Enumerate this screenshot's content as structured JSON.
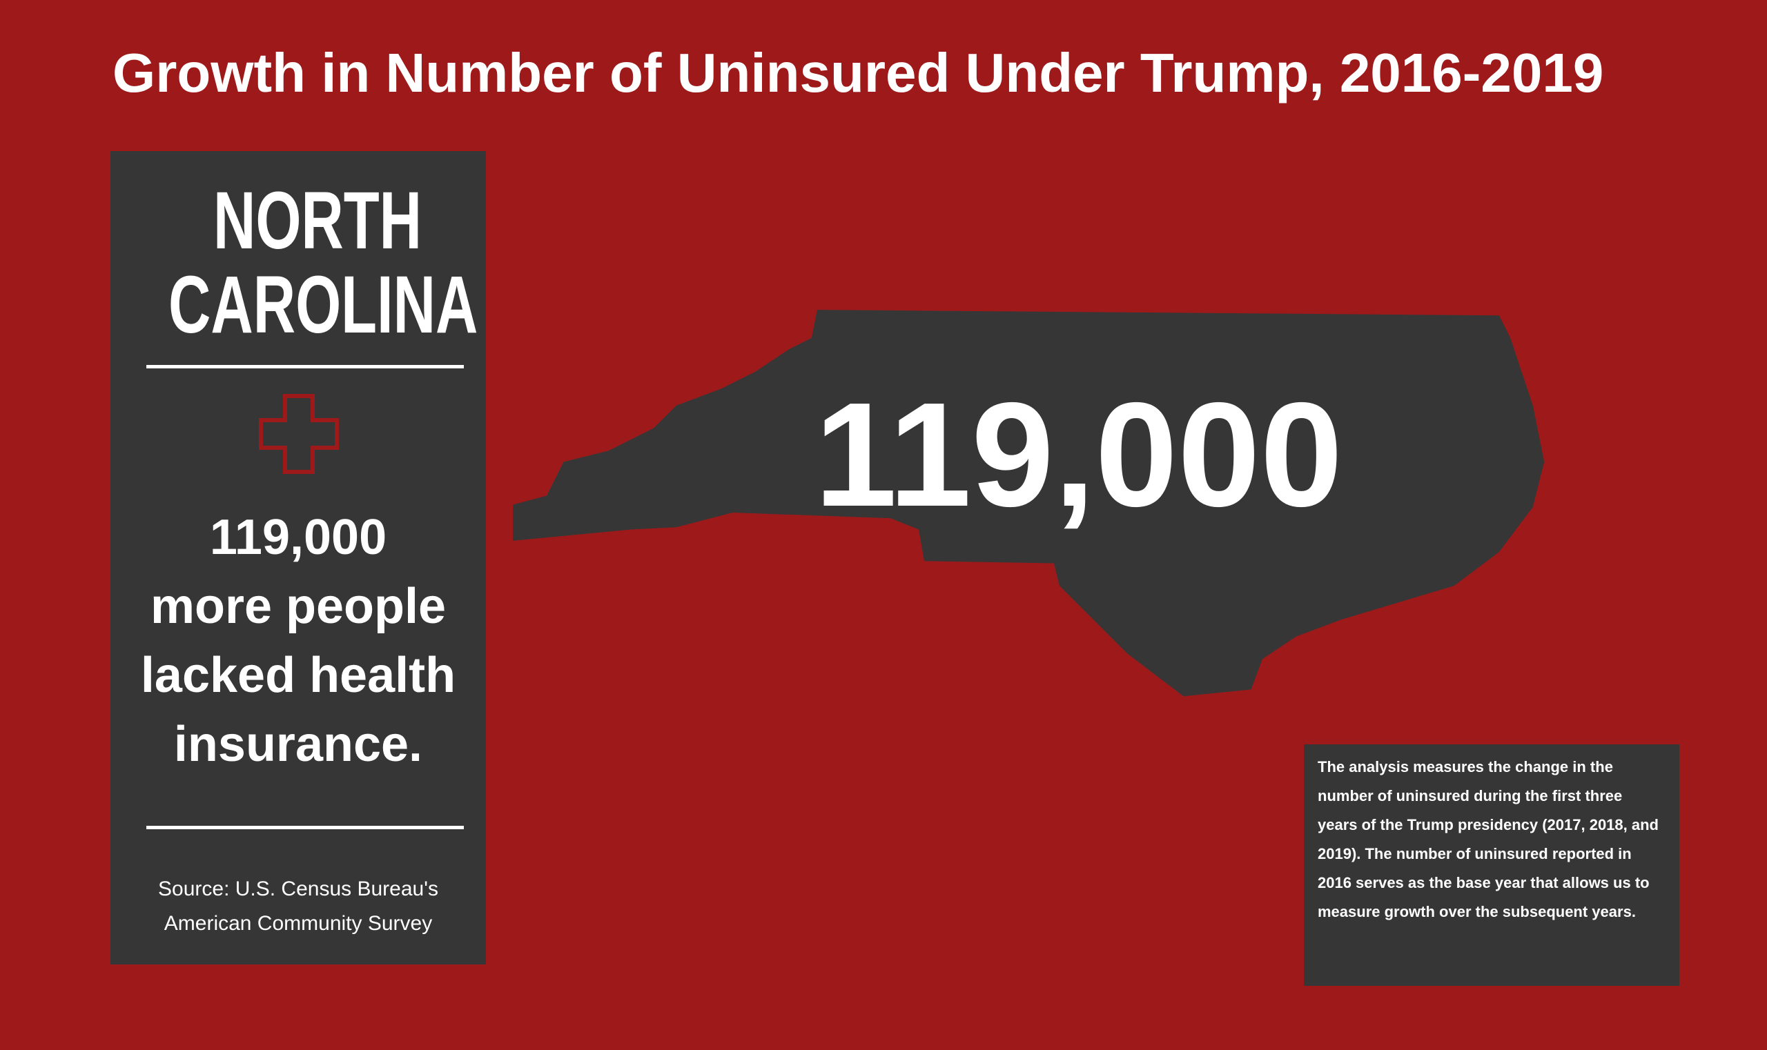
{
  "header": {
    "title": "Growth in Number of Uninsured Under Trump, 2016-2019"
  },
  "panel": {
    "state": "NORTH CAROLINA",
    "stat_number": "119,000",
    "stat_text": "more people lacked health insurance.",
    "source": "Source: U.S. Census Bureau's American Community Survey"
  },
  "map": {
    "label": "119,000"
  },
  "note": {
    "text": "The analysis measures the change in the number of uninsured during the first three years of the Trump presidency (2017, 2018, and 2019). The number of uninsured reported in 2016 serves as the base year that allows us to measure growth over the subsequent years."
  }
}
